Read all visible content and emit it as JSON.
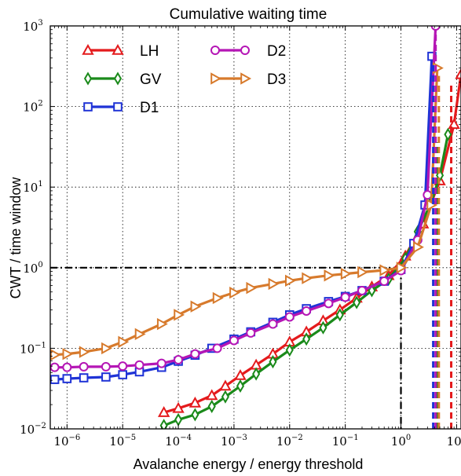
{
  "chart_data": {
    "type": "line",
    "title": "Cumulative waiting time",
    "xlabel": "Avalanche energy / energy threshold",
    "ylabel": "CWT / time window",
    "x_scale": "log",
    "y_scale": "log",
    "xlim": [
      5e-07,
      12
    ],
    "ylim": [
      0.01,
      1000
    ],
    "x_ticks": [
      {
        "base": "10",
        "exp": "−6",
        "value": 1e-06
      },
      {
        "base": "10",
        "exp": "−5",
        "value": 1e-05
      },
      {
        "base": "10",
        "exp": "−4",
        "value": 0.0001
      },
      {
        "base": "10",
        "exp": "−3",
        "value": 0.001
      },
      {
        "base": "10",
        "exp": "−2",
        "value": 0.01
      },
      {
        "base": "10",
        "exp": "−1",
        "value": 0.1
      },
      {
        "base": "10",
        "exp": "0",
        "value": 1
      },
      {
        "base": "10",
        "exp": "1",
        "value": 10
      }
    ],
    "y_ticks": [
      {
        "base": "10",
        "exp": "−2",
        "value": 0.01
      },
      {
        "base": "10",
        "exp": "−1",
        "value": 0.1
      },
      {
        "base": "10",
        "exp": "0",
        "value": 1
      },
      {
        "base": "10",
        "exp": "1",
        "value": 10
      },
      {
        "base": "10",
        "exp": "2",
        "value": 100
      },
      {
        "base": "10",
        "exp": "3",
        "value": 1000
      }
    ],
    "grid": true,
    "legend_position": "top-left",
    "reference_lines": {
      "horizontal_y": 1,
      "vertical_x": 1,
      "color": "#000000"
    },
    "series": [
      {
        "name": "LH",
        "color": "#e41a1c",
        "marker": "triangle-up",
        "x": [
          5.5e-05,
          0.0001,
          0.0002,
          0.0004,
          0.0007,
          0.0013,
          0.0025,
          0.005,
          0.01,
          0.02,
          0.04,
          0.08,
          0.16,
          0.3,
          0.6,
          1.2,
          2.5,
          5,
          9,
          12
        ],
        "y": [
          0.016,
          0.018,
          0.021,
          0.026,
          0.034,
          0.046,
          0.062,
          0.085,
          0.12,
          0.16,
          0.22,
          0.3,
          0.42,
          0.58,
          0.8,
          1.4,
          3.5,
          12,
          60,
          250
        ],
        "threshold_x": 8
      },
      {
        "name": "GV",
        "color": "#1a8a1a",
        "marker": "diamond",
        "x": [
          5.5e-05,
          0.0001,
          0.0002,
          0.0004,
          0.0007,
          0.0013,
          0.0025,
          0.005,
          0.01,
          0.02,
          0.04,
          0.08,
          0.16,
          0.3,
          0.6,
          1.2,
          2,
          3.5,
          5,
          7
        ],
        "y": [
          0.011,
          0.013,
          0.015,
          0.019,
          0.025,
          0.034,
          0.048,
          0.068,
          0.095,
          0.13,
          0.18,
          0.26,
          0.37,
          0.52,
          0.72,
          1.3,
          2.8,
          6.5,
          14,
          45
        ],
        "threshold_x": 4.5
      },
      {
        "name": "D1",
        "color": "#1f33d6",
        "marker": "square",
        "x": [
          6e-07,
          1e-06,
          2e-06,
          5e-06,
          1e-05,
          2e-05,
          5e-05,
          0.0001,
          0.0002,
          0.0004,
          0.001,
          0.002,
          0.005,
          0.01,
          0.02,
          0.05,
          0.1,
          0.2,
          0.5,
          1,
          1.7,
          2.7,
          3.6
        ],
        "y": [
          0.041,
          0.042,
          0.043,
          0.044,
          0.047,
          0.051,
          0.058,
          0.069,
          0.082,
          0.1,
          0.13,
          0.16,
          0.21,
          0.26,
          0.31,
          0.38,
          0.44,
          0.52,
          0.68,
          0.95,
          2,
          6,
          420
        ],
        "threshold_x": 3.8
      },
      {
        "name": "D2",
        "color": "#b516b5",
        "marker": "circle",
        "x": [
          6e-07,
          1e-06,
          2e-06,
          5e-06,
          1e-05,
          2e-05,
          5e-05,
          0.0001,
          0.0002,
          0.0005,
          0.001,
          0.002,
          0.005,
          0.01,
          0.02,
          0.05,
          0.1,
          0.2,
          0.5,
          1,
          2,
          3,
          4.2
        ],
        "y": [
          0.058,
          0.058,
          0.059,
          0.059,
          0.06,
          0.062,
          0.065,
          0.072,
          0.085,
          0.1,
          0.125,
          0.155,
          0.2,
          0.245,
          0.29,
          0.36,
          0.43,
          0.52,
          0.68,
          0.92,
          2.2,
          8,
          1000
        ],
        "threshold_x": 4.2
      },
      {
        "name": "D3",
        "color": "#d77a2c",
        "marker": "triangle-right",
        "x": [
          6e-07,
          1e-06,
          2e-06,
          5e-06,
          1e-05,
          2e-05,
          5e-05,
          0.0001,
          0.0002,
          0.0005,
          0.001,
          0.002,
          0.005,
          0.01,
          0.02,
          0.05,
          0.1,
          0.2,
          0.5,
          1,
          2,
          3.5,
          4.5
        ],
        "y": [
          0.083,
          0.085,
          0.09,
          0.1,
          0.12,
          0.15,
          0.2,
          0.26,
          0.33,
          0.42,
          0.49,
          0.56,
          0.63,
          0.69,
          0.74,
          0.8,
          0.84,
          0.88,
          0.93,
          1.0,
          1.8,
          6,
          300
        ],
        "threshold_x": 4.8
      }
    ]
  }
}
